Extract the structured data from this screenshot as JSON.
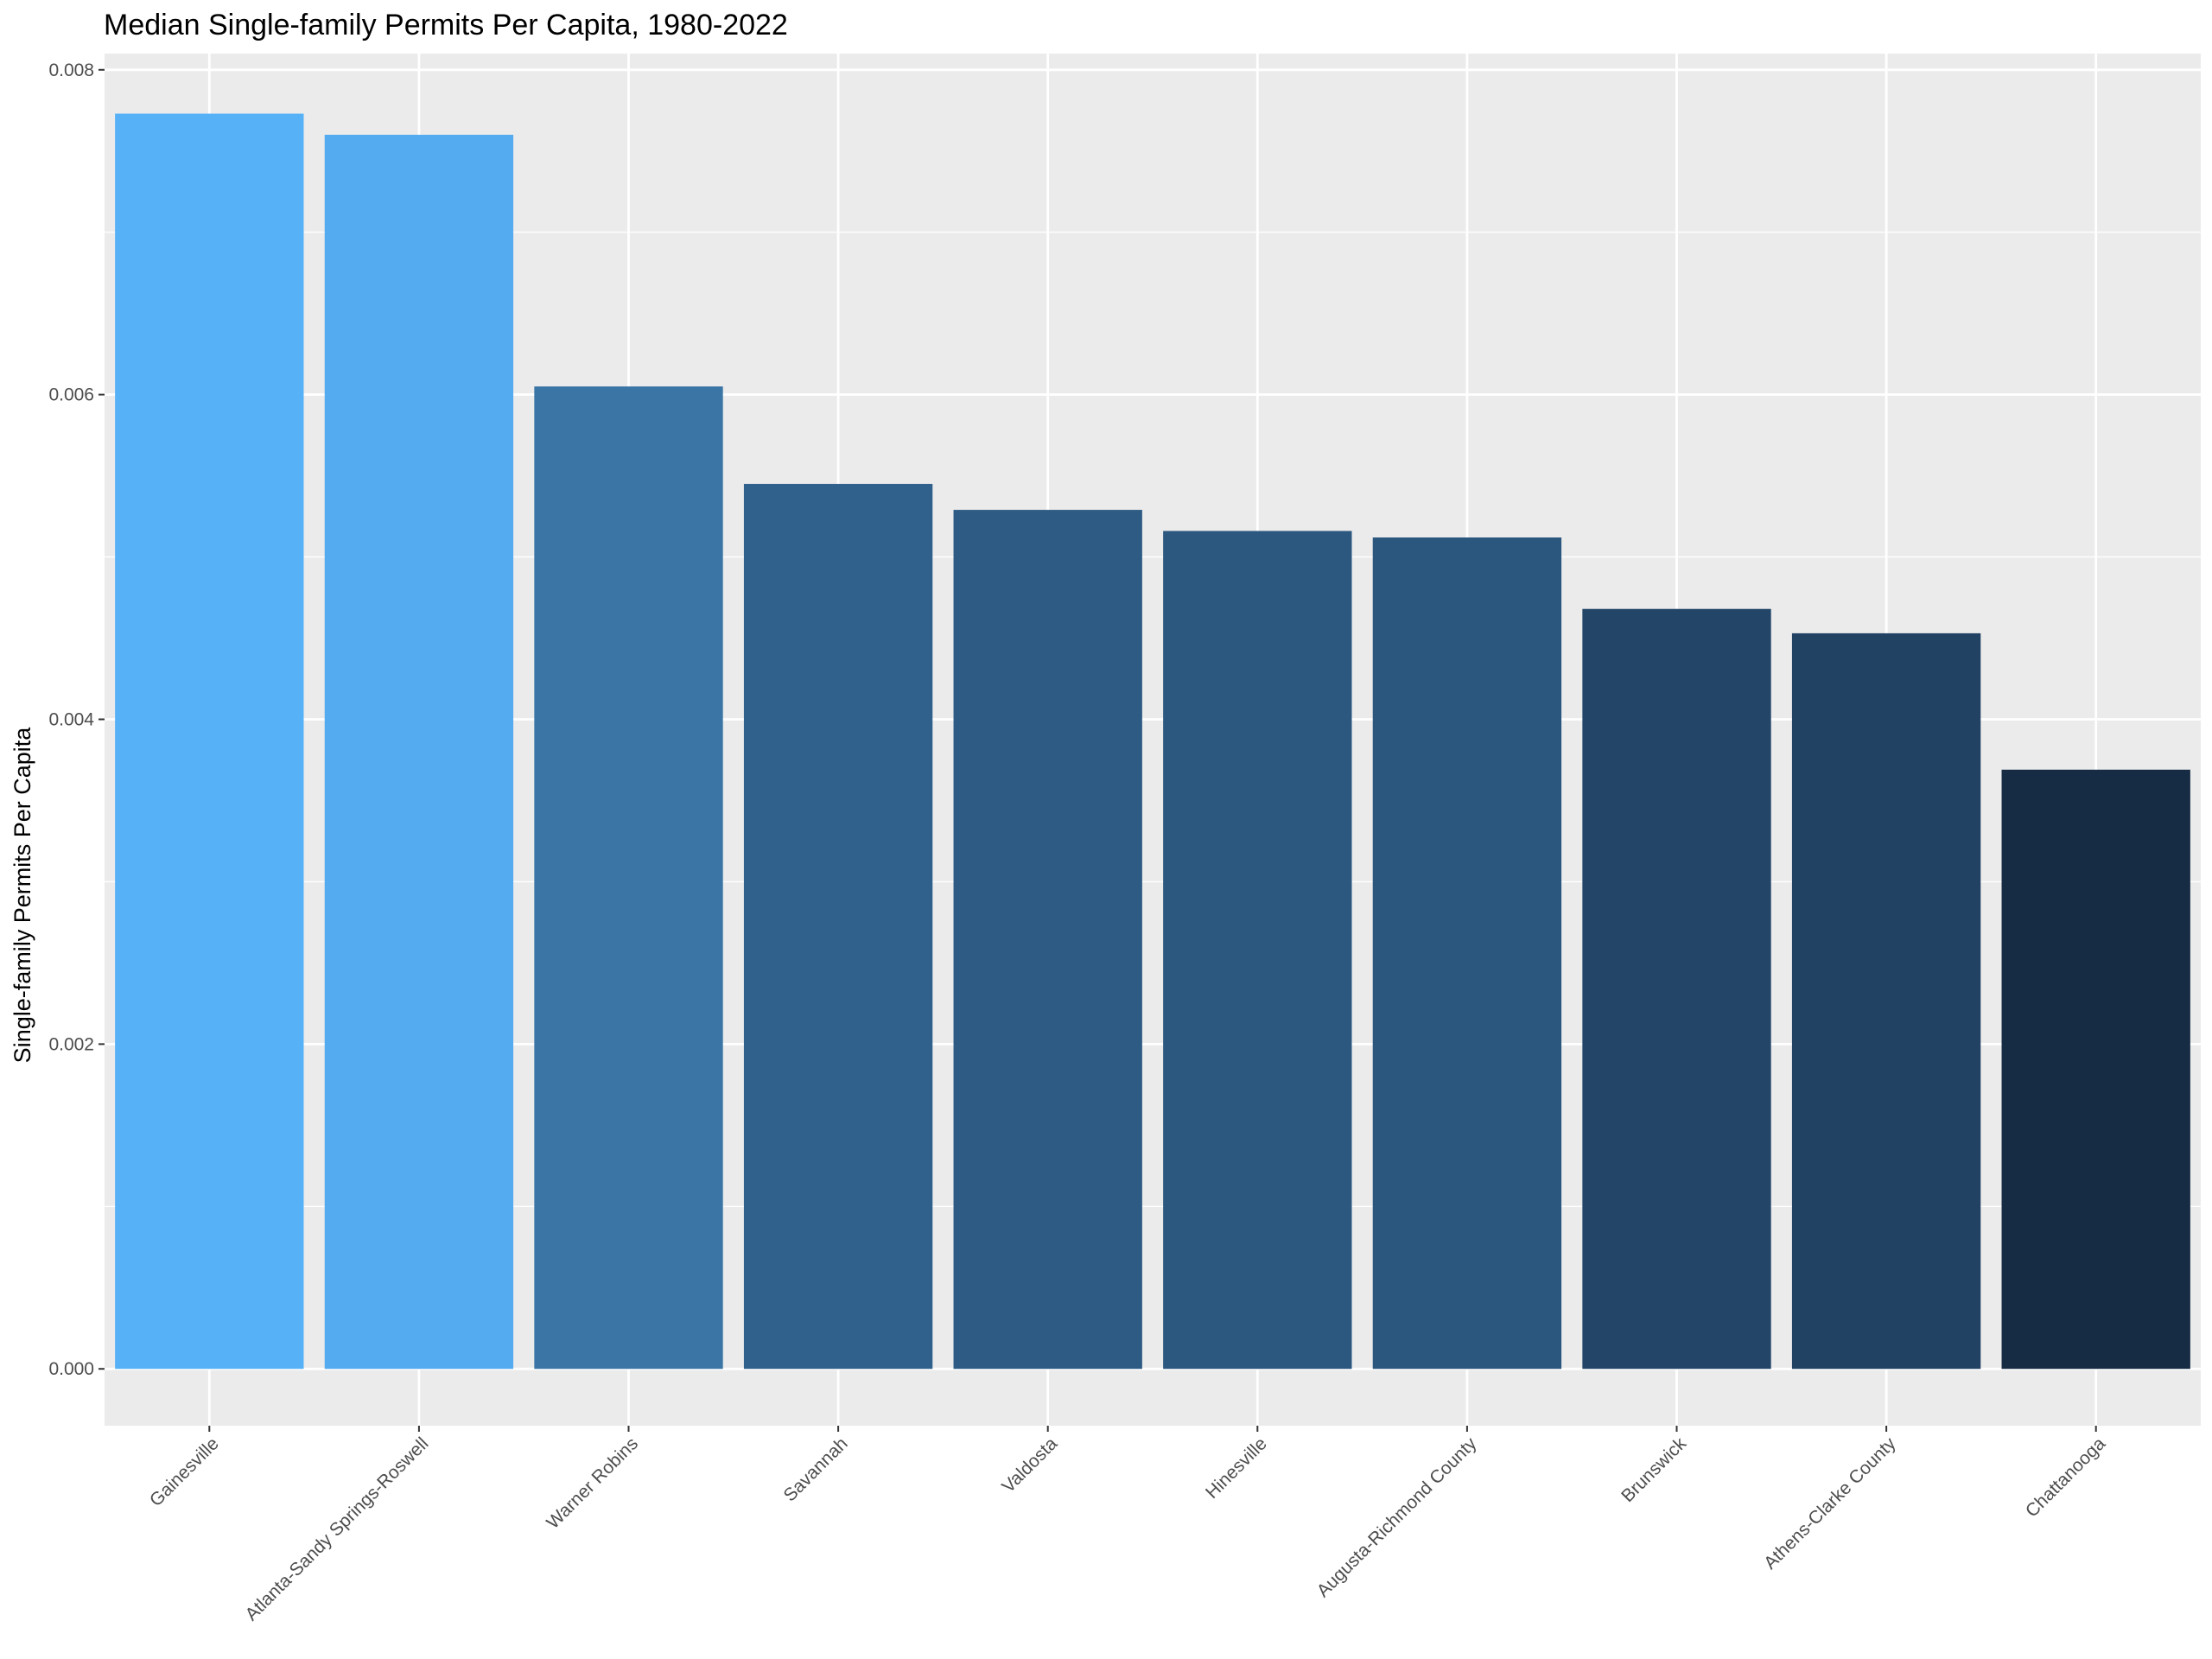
{
  "chart_data": {
    "type": "bar",
    "title": "Median Single-family Permits Per Capita, 1980-2022",
    "xlabel": "",
    "ylabel": "Single-family Permits Per Capita",
    "ylim": [
      -0.00035,
      0.0081
    ],
    "yticks": [
      0.0,
      0.002,
      0.004,
      0.006,
      0.008
    ],
    "ytick_labels": [
      "0.000",
      "0.002",
      "0.004",
      "0.006",
      "0.008"
    ],
    "grid": true,
    "legend": "none",
    "categories": [
      "Gainesville",
      "Atlanta-Sandy Springs-Roswell",
      "Warner Robins",
      "Savannah",
      "Valdosta",
      "Hinesville",
      "Augusta-Richmond County",
      "Brunswick",
      "Athens-Clarke County",
      "Chattanooga"
    ],
    "values": [
      0.00773,
      0.0076,
      0.00605,
      0.00545,
      0.00529,
      0.00516,
      0.00512,
      0.00468,
      0.00453,
      0.00369
    ],
    "colors": [
      "#56B1F7",
      "#55ABF0",
      "#3A75A6",
      "#30618C",
      "#2D5B83",
      "#2C577F",
      "#2B567D",
      "#234668",
      "#214263",
      "#162B44"
    ],
    "panel_background": "#EBEBEB",
    "grid_color": "#FFFFFF"
  }
}
